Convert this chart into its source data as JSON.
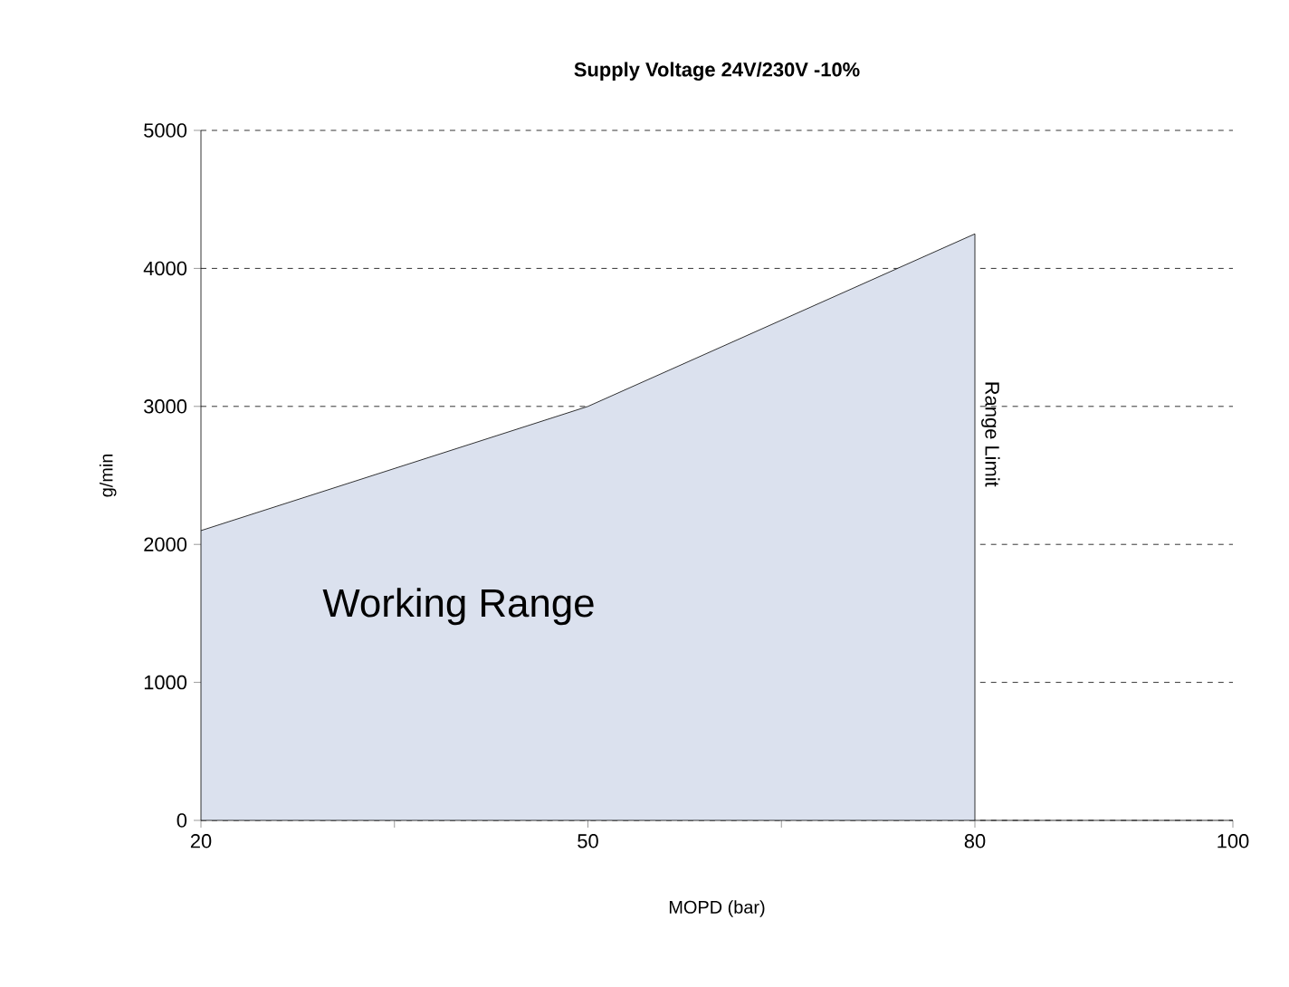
{
  "chart_data": {
    "type": "area",
    "title": "Supply Voltage 24V/230V -10%",
    "xlabel": "MOPD (bar)",
    "ylabel": "g/min",
    "x": [
      20,
      50,
      80
    ],
    "series": [
      {
        "color": "#dbe1ee",
        "values": [
          2100,
          3000,
          4250
        ]
      }
    ],
    "xlim": [
      20,
      100
    ],
    "xticks": [
      20,
      {
        "value": 35,
        "label": null
      },
      50,
      {
        "value": 65,
        "label": null
      },
      80,
      100
    ],
    "ylim": [
      0,
      5000
    ],
    "yticks": [
      0,
      1000,
      2000,
      3000,
      4000,
      5000
    ],
    "grid": "y",
    "line_style": "solid",
    "annotations": [
      "Working Range",
      {
        "text": "Range Limit",
        "x": 80,
        "y": 2800
      }
    ]
  }
}
